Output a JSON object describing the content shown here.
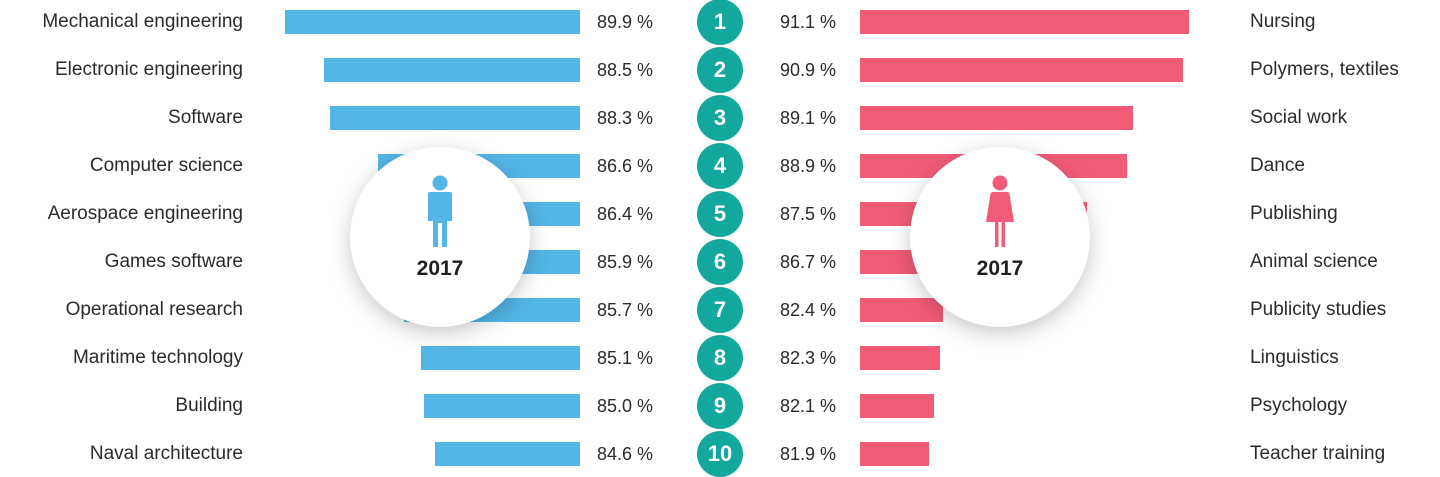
{
  "chart_data": {
    "type": "bar",
    "year": "2017",
    "ranks": [
      "1",
      "2",
      "3",
      "4",
      "5",
      "6",
      "7",
      "8",
      "9",
      "10"
    ],
    "unit": "%",
    "max_value": 100,
    "colors": {
      "male": "#54b6e6",
      "female": "#f25b77",
      "rank": "#13a89e"
    },
    "series": [
      {
        "side": "left",
        "icon": "male-person-icon",
        "categories": [
          "Mechanical engineering",
          "Electronic engineering",
          "Software",
          "Computer science",
          "Aerospace engineering",
          "Games software",
          "Operational research",
          "Maritime technology",
          "Building",
          "Naval architecture"
        ],
        "values": [
          89.9,
          88.5,
          88.3,
          86.6,
          86.4,
          85.9,
          85.7,
          85.1,
          85.0,
          84.6
        ],
        "labels": [
          "89.9 %",
          "88.5 %",
          "88.3 %",
          "86.6 %",
          "86.4 %",
          "85.9 %",
          "85.7 %",
          "85.1 %",
          "85.0 %",
          "84.6 %"
        ]
      },
      {
        "side": "right",
        "icon": "female-person-icon",
        "categories": [
          "Nursing",
          "Polymers, textiles",
          "Social work",
          "Dance",
          "Publishing",
          "Animal science",
          "Publicity studies",
          "Linguistics",
          "Psychology",
          "Teacher training"
        ],
        "values": [
          91.1,
          90.9,
          89.1,
          88.9,
          87.5,
          86.7,
          82.4,
          82.3,
          82.1,
          81.9
        ],
        "labels": [
          "91.1 %",
          "90.9 %",
          "89.1 %",
          "88.9 %",
          "87.5 %",
          "86.7 %",
          "82.4 %",
          "82.3 %",
          "82.1 %",
          "81.9 %"
        ]
      }
    ]
  }
}
